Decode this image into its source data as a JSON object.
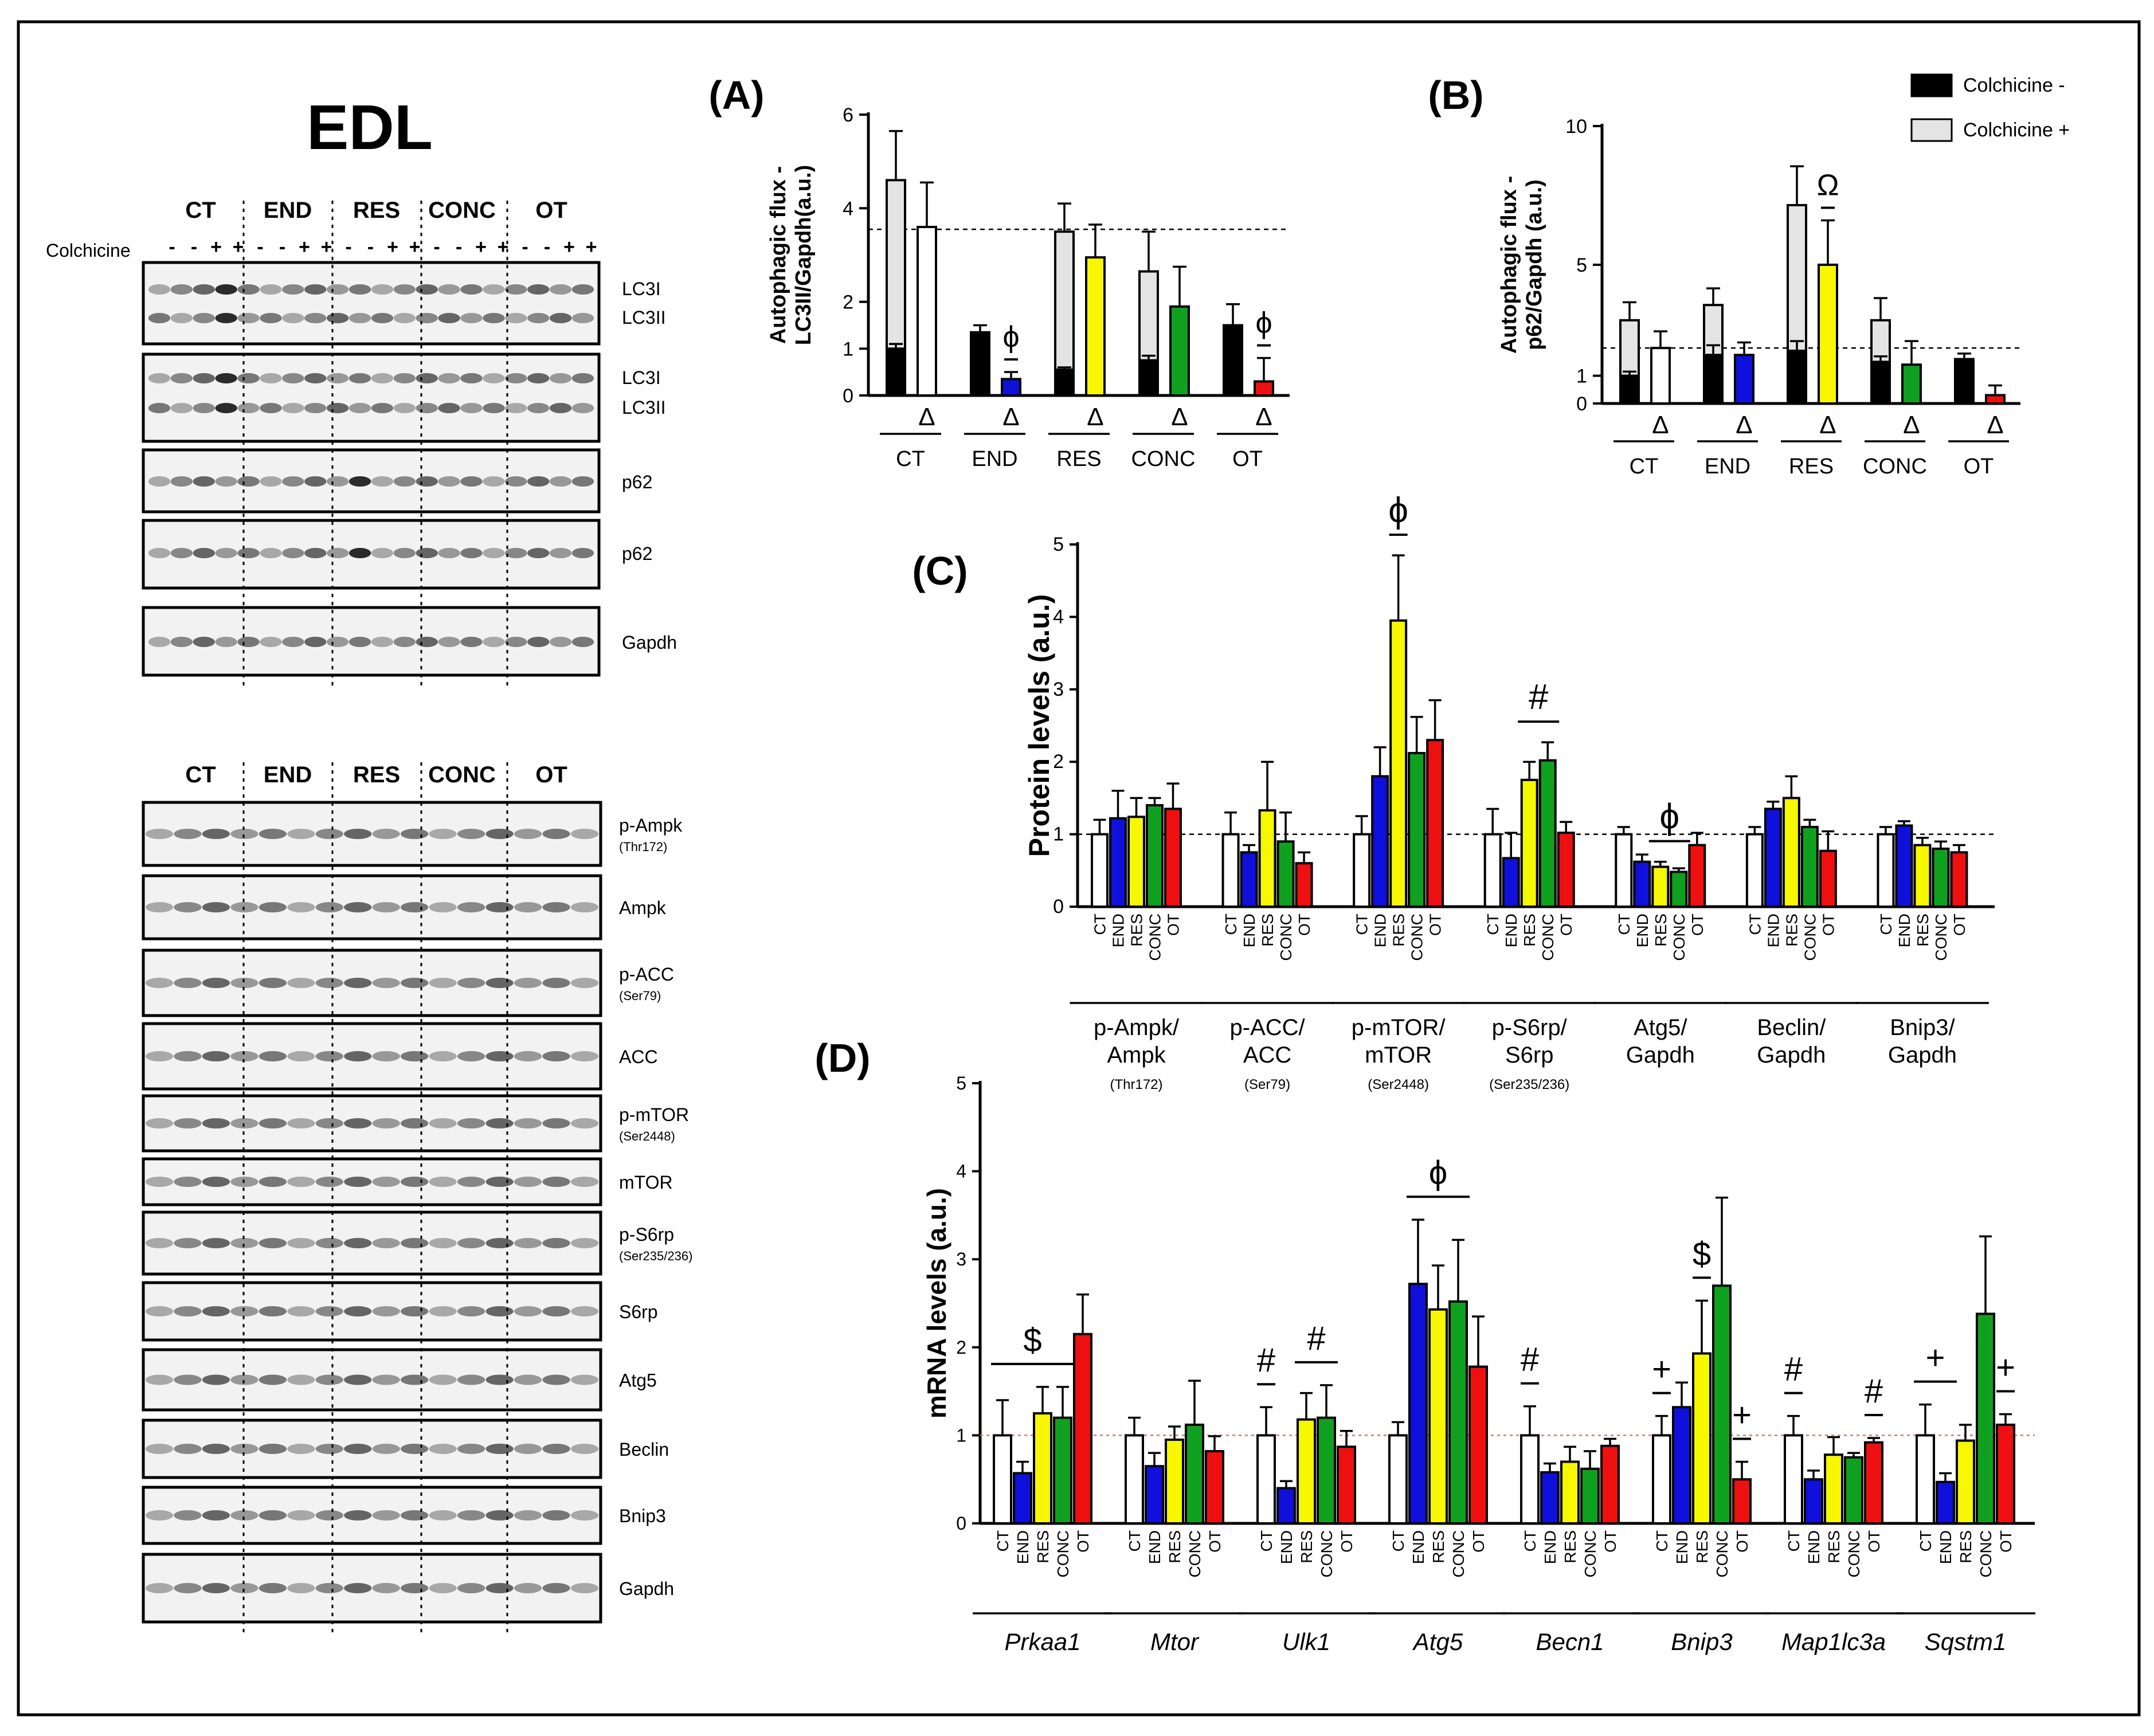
{
  "colors": {
    "ct": "#ffffff",
    "end": "#1010dd",
    "res": "#f7f700",
    "conc": "#10a020",
    "ot": "#ee1010",
    "black": "#000000",
    "grey": "#e4e4e4"
  },
  "blots": {
    "title": "EDL",
    "colchicine_label": "Colchicine",
    "colchicine_signs": [
      "-",
      "-",
      "+",
      "+",
      "-",
      "-",
      "+",
      "+",
      "-",
      "-",
      "+",
      "+",
      "-",
      "-",
      "+",
      "+",
      "-",
      "-",
      "+",
      "+"
    ],
    "groups": [
      "CT",
      "END",
      "RES",
      "CONC",
      "OT"
    ],
    "top_panels": [
      {
        "labels": [
          "LC3I",
          "LC3II"
        ]
      },
      {
        "labels": [
          "LC3I",
          "LC3II"
        ]
      },
      {
        "labels": [
          "p62"
        ]
      },
      {
        "labels": [
          "p62"
        ]
      },
      {
        "labels": [
          "Gapdh"
        ]
      }
    ],
    "bottom_panels": [
      {
        "label": "p-Ampk",
        "sub": "(Thr172)"
      },
      {
        "label": "Ampk",
        "sub": ""
      },
      {
        "label": "p-ACC",
        "sub": "(Ser79)"
      },
      {
        "label": "ACC",
        "sub": ""
      },
      {
        "label": "p-mTOR",
        "sub": "(Ser2448)"
      },
      {
        "label": "mTOR",
        "sub": ""
      },
      {
        "label": "p-S6rp",
        "sub": "(Ser235/236)"
      },
      {
        "label": "S6rp",
        "sub": ""
      },
      {
        "label": "Atg5",
        "sub": ""
      },
      {
        "label": "Beclin",
        "sub": ""
      },
      {
        "label": "Bnip3",
        "sub": ""
      },
      {
        "label": "Gapdh",
        "sub": ""
      }
    ]
  },
  "chart_data": [
    {
      "id": "A",
      "panel_label": "(A)",
      "type": "bar",
      "ylabel": [
        "Autophagic flux -",
        "LC3II/Gapdh(a.u.)"
      ],
      "ylim": [
        0,
        6
      ],
      "yticks": [
        0,
        1,
        2,
        4,
        6
      ],
      "ytick_labels": [
        "0",
        "1",
        "2",
        "4",
        "6"
      ],
      "reference_line": 3.55,
      "groups": [
        "CT",
        "END",
        "RES",
        "CONC",
        "OT"
      ],
      "below_symbol": "Δ",
      "series": [
        {
          "name": "Colchicine -",
          "values": [
            1.0,
            1.35,
            0.55,
            0.75,
            1.5
          ],
          "errors": [
            0.1,
            0.15,
            0.05,
            0.1,
            0.45
          ]
        },
        {
          "name": "Colchicine +",
          "values": [
            4.6,
            1.3,
            3.5,
            2.65,
            1.45
          ],
          "errors": [
            1.05,
            0.0,
            0.6,
            0.85,
            0.0
          ]
        },
        {
          "name": "Flux",
          "values": [
            3.6,
            0.35,
            2.95,
            1.9,
            0.3
          ],
          "errors": [
            0.95,
            0.15,
            0.7,
            0.85,
            0.5
          ]
        }
      ],
      "annotations": [
        {
          "group": "END",
          "symbol": "ϕ"
        },
        {
          "group": "OT",
          "symbol": "ϕ"
        }
      ]
    },
    {
      "id": "B",
      "panel_label": "(B)",
      "type": "bar",
      "ylabel": [
        "Autophagic flux -",
        "p62/Gapdh (a.u.)"
      ],
      "ylim": [
        0,
        10
      ],
      "yticks": [
        0,
        1,
        5,
        10
      ],
      "ytick_labels": [
        "0",
        "1",
        "5",
        "10"
      ],
      "reference_line": 2.0,
      "groups": [
        "CT",
        "END",
        "RES",
        "CONC",
        "OT"
      ],
      "below_symbol": "Δ",
      "series": [
        {
          "name": "Colchicine -",
          "values": [
            1.0,
            1.75,
            1.9,
            1.5,
            1.6
          ],
          "errors": [
            0.15,
            0.35,
            0.35,
            0.2,
            0.2
          ]
        },
        {
          "name": "Colchicine +",
          "values": [
            3.0,
            3.55,
            7.15,
            3.0,
            1.6
          ],
          "errors": [
            0.65,
            0.6,
            1.4,
            0.8,
            0.0
          ]
        },
        {
          "name": "Flux",
          "values": [
            2.0,
            1.75,
            5.0,
            1.4,
            0.3
          ],
          "errors": [
            0.6,
            0.45,
            1.6,
            0.85,
            0.35
          ]
        }
      ],
      "legend": [
        "Colchicine -",
        "Colchicine +"
      ],
      "annotations": [
        {
          "group": "RES",
          "symbol": "Ω"
        }
      ]
    },
    {
      "id": "C",
      "panel_label": "(C)",
      "type": "bar",
      "ylabel": "Protein levels (a.u.)",
      "ylim": [
        0,
        5
      ],
      "yticks": [
        0,
        1,
        2,
        3,
        4,
        5
      ],
      "reference_line": 1.0,
      "bar_labels": [
        "CT",
        "END",
        "RES",
        "CONC",
        "OT"
      ],
      "groups": [
        {
          "name": [
            "p-Ampk/",
            "Ampk"
          ],
          "sub": "(Thr172)",
          "values": [
            1.0,
            1.22,
            1.24,
            1.4,
            1.35
          ],
          "errors": [
            0.2,
            0.38,
            0.26,
            0.1,
            0.35
          ]
        },
        {
          "name": [
            "p-ACC/",
            "ACC"
          ],
          "sub": "(Ser79)",
          "values": [
            1.0,
            0.75,
            1.33,
            0.9,
            0.6
          ],
          "errors": [
            0.3,
            0.1,
            0.67,
            0.4,
            0.15
          ]
        },
        {
          "name": [
            "p-mTOR/",
            "mTOR"
          ],
          "sub": "(Ser2448)",
          "values": [
            1.0,
            1.8,
            3.95,
            2.12,
            2.3
          ],
          "errors": [
            0.25,
            0.4,
            0.9,
            0.5,
            0.55
          ]
        },
        {
          "name": [
            "p-S6rp/",
            "S6rp"
          ],
          "sub": "(Ser235/236)",
          "values": [
            1.0,
            0.67,
            1.75,
            2.02,
            1.02
          ],
          "errors": [
            0.35,
            0.35,
            0.25,
            0.25,
            0.15
          ]
        },
        {
          "name": [
            "Atg5/",
            "Gapdh"
          ],
          "sub": "",
          "values": [
            1.0,
            0.62,
            0.55,
            0.48,
            0.85
          ],
          "errors": [
            0.1,
            0.1,
            0.07,
            0.05,
            0.17
          ]
        },
        {
          "name": [
            "Beclin/",
            "Gapdh"
          ],
          "sub": "",
          "values": [
            1.0,
            1.35,
            1.5,
            1.1,
            0.77
          ],
          "errors": [
            0.1,
            0.1,
            0.3,
            0.1,
            0.27
          ]
        },
        {
          "name": [
            "Bnip3/",
            "Gapdh"
          ],
          "sub": "",
          "values": [
            1.0,
            1.12,
            0.85,
            0.8,
            0.75
          ],
          "errors": [
            0.1,
            0.06,
            0.1,
            0.1,
            0.1
          ]
        }
      ],
      "annotations": [
        {
          "group": 2,
          "from": 2,
          "to": 2,
          "symbol": "ϕ"
        },
        {
          "group": 3,
          "from": 2,
          "to": 3,
          "symbol": "#"
        },
        {
          "group": 4,
          "from": 2,
          "to": 3,
          "symbol": "ϕ"
        }
      ]
    },
    {
      "id": "D",
      "panel_label": "(D)",
      "type": "bar",
      "ylabel": "mRNA levels (a.u.)",
      "ylim": [
        0,
        5
      ],
      "yticks": [
        0,
        1,
        2,
        3,
        4,
        5
      ],
      "reference_line": 1.0,
      "bar_labels": [
        "CT",
        "END",
        "RES",
        "CONC",
        "OT"
      ],
      "groups": [
        {
          "name": "Prkaa1",
          "values": [
            1.0,
            0.57,
            1.25,
            1.2,
            2.15
          ],
          "errors": [
            0.4,
            0.13,
            0.3,
            0.35,
            0.45
          ]
        },
        {
          "name": "Mtor",
          "values": [
            1.0,
            0.65,
            0.95,
            1.12,
            0.82
          ],
          "errors": [
            0.2,
            0.15,
            0.15,
            0.5,
            0.17
          ]
        },
        {
          "name": "Ulk1",
          "values": [
            1.0,
            0.4,
            1.18,
            1.2,
            0.87
          ],
          "errors": [
            0.32,
            0.08,
            0.3,
            0.37,
            0.18
          ]
        },
        {
          "name": "Atg5",
          "values": [
            1.0,
            2.72,
            2.43,
            2.52,
            1.78
          ],
          "errors": [
            0.15,
            0.73,
            0.5,
            0.7,
            0.57
          ]
        },
        {
          "name": "Becn1",
          "values": [
            1.0,
            0.58,
            0.7,
            0.62,
            0.88
          ],
          "errors": [
            0.33,
            0.1,
            0.17,
            0.2,
            0.08
          ]
        },
        {
          "name": "Bnip3",
          "values": [
            1.0,
            1.32,
            1.93,
            2.7,
            0.5
          ],
          "errors": [
            0.22,
            0.28,
            0.6,
            1.0,
            0.2
          ]
        },
        {
          "name": "Map1lc3a",
          "values": [
            1.0,
            0.5,
            0.78,
            0.75,
            0.92
          ],
          "errors": [
            0.22,
            0.1,
            0.2,
            0.05,
            0.05
          ]
        },
        {
          "name": "Sqstm1",
          "values": [
            1.0,
            0.47,
            0.94,
            2.38,
            1.12
          ],
          "errors": [
            0.35,
            0.1,
            0.18,
            0.88,
            0.12
          ]
        }
      ],
      "annotations": [
        {
          "group": 0,
          "from": 0,
          "to": 3,
          "symbol": "$"
        },
        {
          "group": 2,
          "from": 0,
          "to": 0,
          "symbol": "#"
        },
        {
          "group": 2,
          "from": 2,
          "to": 3,
          "symbol": "#"
        },
        {
          "group": 3,
          "from": 1,
          "to": 3,
          "symbol": "ϕ"
        },
        {
          "group": 4,
          "from": 0,
          "to": 0,
          "symbol": "#"
        },
        {
          "group": 5,
          "from": 0,
          "to": 0,
          "symbol": "+"
        },
        {
          "group": 5,
          "from": 2,
          "to": 2,
          "symbol": "$"
        },
        {
          "group": 5,
          "from": 4,
          "to": 4,
          "symbol": "+"
        },
        {
          "group": 6,
          "from": 0,
          "to": 0,
          "symbol": "#"
        },
        {
          "group": 6,
          "from": 4,
          "to": 4,
          "symbol": "#"
        },
        {
          "group": 7,
          "from": 0,
          "to": 1,
          "symbol": "+"
        },
        {
          "group": 7,
          "from": 4,
          "to": 4,
          "symbol": "+"
        }
      ]
    }
  ]
}
